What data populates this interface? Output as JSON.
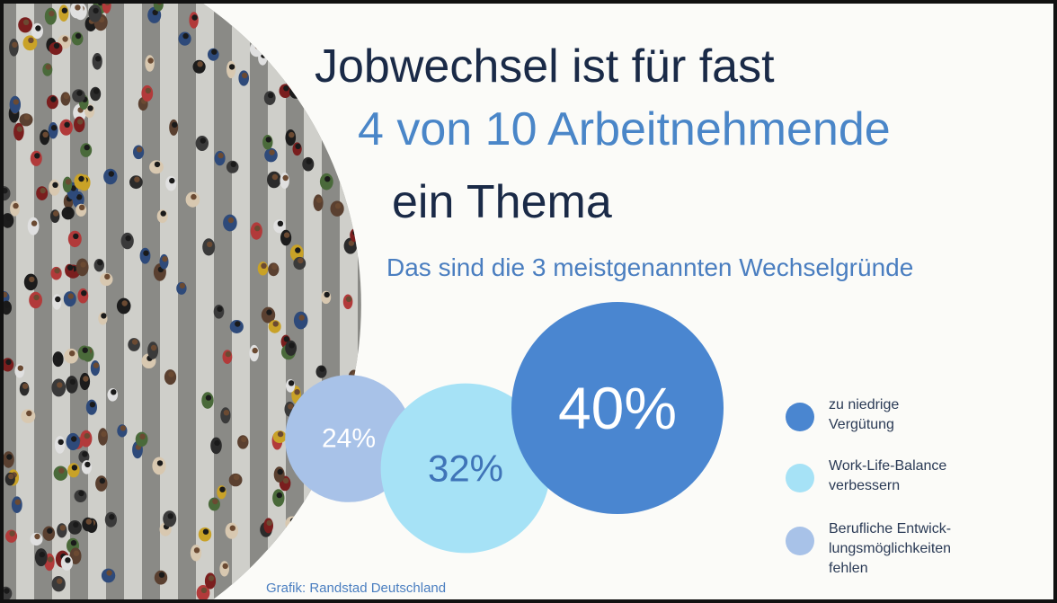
{
  "heading": {
    "line1": "Jobwechsel ist für fast",
    "line2": "4 von 10 Arbeitnehmende",
    "line3": "ein Thema"
  },
  "subtitle": "Das sind die 3 meistgenannten Wechselgründe",
  "source": "Grafik: Randstad Deutschland",
  "chart_data": {
    "type": "bubble",
    "unit": "%",
    "series": [
      {
        "name": "Berufliche Entwicklungsmöglichkeiten fehlen",
        "legend_lines": [
          "Berufliche Entwick-",
          "lungsmöglichkeiten",
          "fehlen"
        ],
        "value": 24,
        "label": "24%",
        "color": "#a8c2e8"
      },
      {
        "name": "Work-Life-Balance verbessern",
        "legend_lines": [
          "Work-Life-Balance",
          "verbessern"
        ],
        "value": 32,
        "label": "32%",
        "color": "#a6e2f6"
      },
      {
        "name": "zu niedrige Vergütung",
        "legend_lines": [
          "zu niedrige",
          "Vergütung"
        ],
        "value": 40,
        "label": "40%",
        "color": "#4a86d0"
      }
    ],
    "legend_order": [
      2,
      1,
      0
    ],
    "legend_position": "right"
  },
  "colors": {
    "heading_dark": "#1a2a47",
    "heading_accent": "#4a86c8",
    "subtitle": "#4a7ec0",
    "background": "#fbfbf8"
  }
}
